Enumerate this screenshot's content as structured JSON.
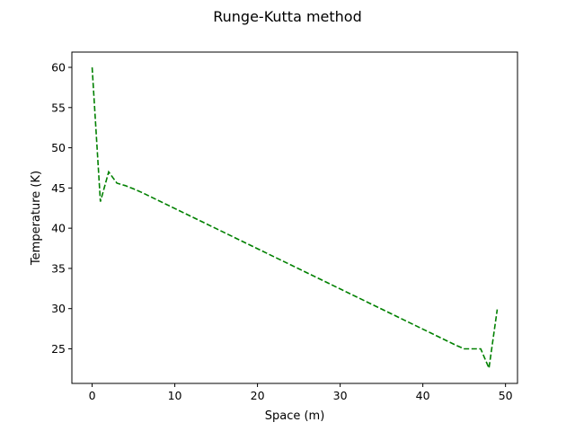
{
  "chart_data": {
    "type": "line",
    "title": "Runge-Kutta method",
    "xlabel": "Space (m)",
    "ylabel": "Temperature (K)",
    "xlim": [
      -2.45,
      51.45
    ],
    "ylim": [
      20.7,
      61.9
    ],
    "x_ticks": [
      0,
      10,
      20,
      30,
      40,
      50
    ],
    "y_ticks": [
      25,
      30,
      35,
      40,
      45,
      50,
      55,
      60
    ],
    "grid": false,
    "legend": "none",
    "series": [
      {
        "color": "#008000",
        "line_style": "dashed",
        "x": [
          0,
          1,
          2,
          3,
          4,
          5,
          6,
          7,
          8,
          9,
          10,
          11,
          12,
          13,
          14,
          15,
          16,
          17,
          18,
          19,
          20,
          21,
          22,
          23,
          24,
          25,
          26,
          27,
          28,
          29,
          30,
          31,
          32,
          33,
          34,
          35,
          36,
          37,
          38,
          39,
          40,
          41,
          42,
          43,
          44,
          45,
          46,
          47,
          48,
          49
        ],
        "y": [
          60.0,
          43.3,
          47.0,
          45.6,
          45.3,
          44.9,
          44.45,
          43.95,
          43.45,
          42.95,
          42.45,
          41.95,
          41.45,
          40.95,
          40.45,
          39.95,
          39.45,
          38.95,
          38.45,
          37.95,
          37.45,
          36.95,
          36.45,
          35.95,
          35.45,
          34.95,
          34.45,
          33.95,
          33.45,
          32.95,
          32.45,
          31.95,
          31.45,
          30.95,
          30.45,
          29.95,
          29.45,
          28.95,
          28.45,
          27.95,
          27.45,
          26.95,
          26.45,
          25.95,
          25.45,
          25.0,
          25.0,
          25.0,
          22.6,
          29.9
        ]
      }
    ]
  }
}
